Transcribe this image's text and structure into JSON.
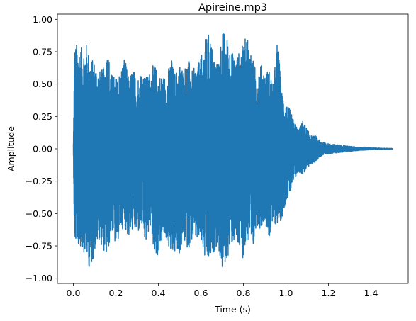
{
  "chart_data": {
    "type": "line",
    "title": "Apireine.mp3",
    "xlabel": "Time (s)",
    "ylabel": "Amplitude",
    "xlim": [
      -0.075,
      1.575
    ],
    "ylim": [
      -1.04,
      1.04
    ],
    "xticks": [
      0.0,
      0.2,
      0.4,
      0.6,
      0.8,
      1.0,
      1.2,
      1.4
    ],
    "xtick_labels": [
      "0.0",
      "0.2",
      "0.4",
      "0.6",
      "0.8",
      "1.0",
      "1.2",
      "1.4"
    ],
    "yticks": [
      1.0,
      0.75,
      0.5,
      0.25,
      0.0,
      -0.25,
      -0.5,
      -0.75,
      -1.0
    ],
    "ytick_labels": [
      "1.00",
      "0.75",
      "0.50",
      "0.25",
      "0.00",
      "−0.25",
      "−0.50",
      "−0.75",
      "−1.00"
    ],
    "grid": false,
    "color": "#1f77b4",
    "series": [
      {
        "x_start": 0.0,
        "x_end": 1.5,
        "envelope_time": [
          0.0,
          0.005,
          0.02,
          0.04,
          0.06,
          0.08,
          0.1,
          0.12,
          0.14,
          0.16,
          0.18,
          0.2,
          0.22,
          0.24,
          0.26,
          0.28,
          0.3,
          0.32,
          0.34,
          0.36,
          0.38,
          0.4,
          0.42,
          0.44,
          0.46,
          0.48,
          0.5,
          0.52,
          0.54,
          0.56,
          0.58,
          0.6,
          0.62,
          0.64,
          0.66,
          0.68,
          0.7,
          0.72,
          0.74,
          0.76,
          0.78,
          0.8,
          0.82,
          0.84,
          0.86,
          0.88,
          0.9,
          0.92,
          0.94,
          0.96,
          0.98,
          1.0,
          1.02,
          1.04,
          1.06,
          1.08,
          1.1,
          1.12,
          1.14,
          1.16,
          1.18,
          1.2,
          1.25,
          1.3,
          1.35,
          1.4,
          1.45,
          1.5
        ],
        "envelope_max": [
          0.05,
          0.8,
          0.82,
          0.78,
          0.82,
          0.7,
          0.68,
          0.6,
          0.62,
          0.78,
          0.58,
          0.55,
          0.6,
          0.72,
          0.55,
          0.62,
          0.55,
          0.62,
          0.55,
          0.6,
          0.66,
          0.58,
          0.56,
          0.58,
          0.7,
          0.58,
          0.66,
          0.62,
          0.7,
          0.6,
          0.66,
          0.7,
          0.85,
          0.9,
          0.75,
          0.65,
          0.92,
          0.88,
          0.78,
          0.7,
          0.75,
          0.82,
          0.9,
          0.72,
          0.6,
          0.66,
          0.6,
          0.62,
          0.5,
          0.85,
          0.45,
          0.35,
          0.3,
          0.2,
          0.15,
          0.22,
          0.15,
          0.1,
          0.1,
          0.06,
          0.05,
          0.04,
          0.03,
          0.02,
          0.012,
          0.008,
          0.005,
          0.003
        ],
        "envelope_min": [
          -0.05,
          -0.75,
          -0.75,
          -0.78,
          -0.82,
          -0.96,
          -0.8,
          -0.7,
          -0.78,
          -0.85,
          -0.62,
          -0.78,
          -0.64,
          -0.6,
          -0.7,
          -0.62,
          -0.68,
          -0.6,
          -0.76,
          -0.6,
          -0.8,
          -0.84,
          -0.7,
          -0.72,
          -0.85,
          -0.8,
          -0.82,
          -0.72,
          -0.78,
          -0.7,
          -0.72,
          -0.72,
          -0.88,
          -0.9,
          -0.8,
          -0.75,
          -0.95,
          -0.88,
          -0.75,
          -0.72,
          -0.8,
          -0.85,
          -0.7,
          -0.92,
          -0.58,
          -0.62,
          -0.55,
          -0.7,
          -0.6,
          -0.58,
          -0.55,
          -0.4,
          -0.35,
          -0.25,
          -0.18,
          -0.2,
          -0.15,
          -0.12,
          -0.1,
          -0.06,
          -0.05,
          -0.04,
          -0.03,
          -0.02,
          -0.012,
          -0.008,
          -0.005,
          -0.003
        ]
      }
    ]
  }
}
